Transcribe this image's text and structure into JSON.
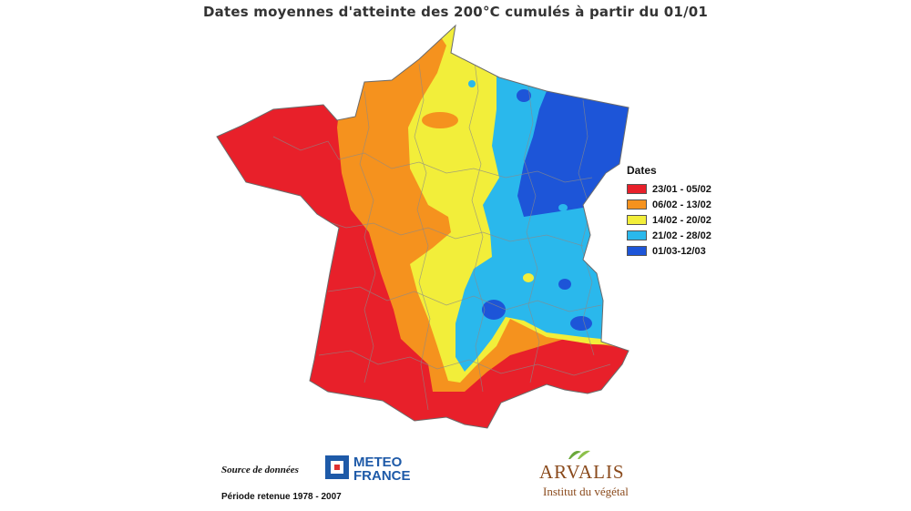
{
  "title": "Dates moyennes d'atteinte des 200°C cumulés à partir du 01/01",
  "legend": {
    "title": "Dates",
    "items": [
      {
        "label": "23/01 - 05/02",
        "color": "#e8202a"
      },
      {
        "label": "06/02 - 13/02",
        "color": "#f5921e"
      },
      {
        "label": "14/02 - 20/02",
        "color": "#f2ee3a"
      },
      {
        "label": "21/02 - 28/02",
        "color": "#2ab8ec"
      },
      {
        "label": "01/03-12/03",
        "color": "#1d55d8"
      }
    ]
  },
  "footer": {
    "source_label": "Source de données",
    "meteo_line1": "METEO",
    "meteo_line2": "FRANCE",
    "period": "Période retenue 1978 - 2007",
    "arvalis_name": "ARVALIS",
    "arvalis_sub": "Institut du végétal"
  }
}
